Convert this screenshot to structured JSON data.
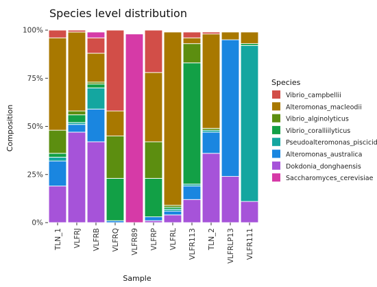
{
  "chart_data": {
    "type": "bar",
    "stacked": true,
    "title": "Species  level distribution",
    "xlabel": "Sample",
    "ylabel": "Composition",
    "ylim": [
      0,
      1
    ],
    "yticks": [
      0,
      0.25,
      0.5,
      0.75,
      1.0
    ],
    "ytick_labels": [
      "0%",
      "25%",
      "50%",
      "75%",
      "100%"
    ],
    "grid": false,
    "legend_title": "Species",
    "legend_position": "right",
    "categories": [
      "TLN_1",
      "VLFRJ",
      "VLFRB",
      "VLFRQ",
      "VLFR89",
      "VLFRP",
      "VLFRL",
      "VLFR113",
      "TLN_2",
      "VLFRLP13",
      "VLFR111"
    ],
    "series": [
      {
        "name": "Dokdonia_donghaensis",
        "color": "#A653D9",
        "values": [
          0.19,
          0.47,
          0.42,
          0.0,
          0.0,
          0.01,
          0.04,
          0.12,
          0.36,
          0.24,
          0.11
        ]
      },
      {
        "name": "Alteromonas_australica",
        "color": "#1A86E0",
        "values": [
          0.13,
          0.04,
          0.17,
          0.01,
          0.0,
          0.02,
          0.02,
          0.07,
          0.11,
          0.71,
          0.0
        ]
      },
      {
        "name": "Pseudoalteromonas_piscicida",
        "color": "#14A6A0",
        "values": [
          0.02,
          0.01,
          0.11,
          0.0,
          0.0,
          0.0,
          0.01,
          0.01,
          0.01,
          0.0,
          0.81
        ]
      },
      {
        "name": "Vibrio_coralliilyticus",
        "color": "#12A046",
        "values": [
          0.02,
          0.04,
          0.02,
          0.22,
          0.0,
          0.2,
          0.01,
          0.63,
          0.0,
          0.0,
          0.01
        ]
      },
      {
        "name": "Vibrio_alginolyticus",
        "color": "#5C8E10",
        "values": [
          0.12,
          0.02,
          0.01,
          0.22,
          0.0,
          0.19,
          0.01,
          0.1,
          0.01,
          0.0,
          0.0
        ]
      },
      {
        "name": "Alteromonas_macleodii",
        "color": "#A87800",
        "values": [
          0.48,
          0.41,
          0.15,
          0.13,
          0.0,
          0.36,
          0.9,
          0.03,
          0.49,
          0.04,
          0.06
        ]
      },
      {
        "name": "Vibrio_campbellii",
        "color": "#D24E48",
        "values": [
          0.04,
          0.01,
          0.08,
          0.42,
          0.0,
          0.22,
          0.0,
          0.03,
          0.01,
          0.0,
          0.0
        ]
      },
      {
        "name": "Saccharomyces_cerevisiae",
        "color": "#D63AA7",
        "values": [
          0.0,
          0.0,
          0.03,
          0.0,
          0.98,
          0.0,
          0.0,
          0.0,
          0.0,
          0.0,
          0.0
        ]
      }
    ],
    "legend_order": [
      "Vibrio_campbellii",
      "Alteromonas_macleodii",
      "Vibrio_alginolyticus",
      "Vibrio_coralliilyticus",
      "Pseudoalteromonas_piscicida",
      "Alteromonas_australica",
      "Dokdonia_donghaensis",
      "Saccharomyces_cerevisiae"
    ]
  }
}
